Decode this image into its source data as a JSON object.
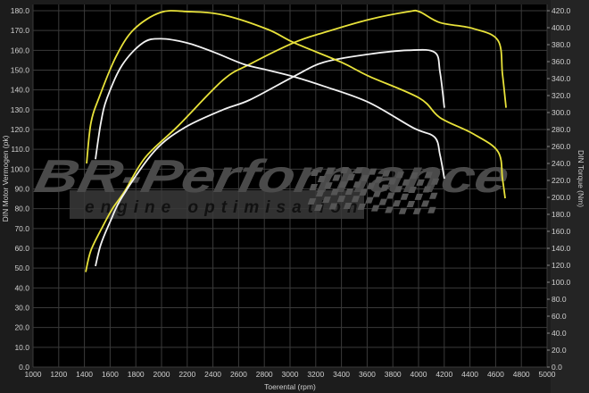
{
  "chart_data": {
    "type": "line",
    "title": "",
    "xlabel": "Toerental (rpm)",
    "ylabel_left": "DIN Motor Vermogen (pk)",
    "ylabel_right": "DIN Torque (Nm)",
    "xlim": [
      1000,
      5000
    ],
    "ylim_left": [
      0,
      180
    ],
    "ylim_right": [
      0,
      420
    ],
    "x_ticks": [
      1000,
      1200,
      1400,
      1600,
      1800,
      2000,
      2200,
      2400,
      2600,
      2800,
      3000,
      3200,
      3400,
      3600,
      3800,
      4000,
      4200,
      4400,
      4600,
      4800,
      5000
    ],
    "y_left_ticks": [
      "0.0",
      "10.0",
      "20.0",
      "30.0",
      "40.0",
      "50.0",
      "60.0",
      "70.0",
      "80.0",
      "90.0",
      "100.0",
      "110.0",
      "120.0",
      "130.0",
      "140.0",
      "150.0",
      "160.0",
      "170.0",
      "180.0"
    ],
    "y_right_ticks": [
      "0.0",
      "20.0",
      "40.0",
      "60.0",
      "80.0",
      "100.0",
      "120.0",
      "140.0",
      "160.0",
      "180.0",
      "200.0",
      "220.0",
      "240.0",
      "260.0",
      "280.0",
      "300.0",
      "320.0",
      "340.0",
      "360.0",
      "380.0",
      "400.0",
      "420.0"
    ],
    "grid": true,
    "colors": {
      "tuned": "#e8e23a",
      "stock": "#f2f2f2",
      "background": "#000000",
      "grid": "#3a3a3a"
    },
    "series": [
      {
        "axis": "left",
        "color": "#e8e23a",
        "points": [
          [
            1410,
            48
          ],
          [
            1451,
            59
          ],
          [
            1542,
            71
          ],
          [
            1618,
            80
          ],
          [
            1715,
            89
          ],
          [
            1875,
            106
          ],
          [
            2132,
            122
          ],
          [
            2479,
            145
          ],
          [
            2688,
            153
          ],
          [
            3035,
            164
          ],
          [
            3264,
            169
          ],
          [
            3611,
            175.5
          ],
          [
            3917,
            179.5
          ],
          [
            4007,
            179.5
          ],
          [
            4167,
            174
          ],
          [
            4424,
            171
          ],
          [
            4618,
            165
          ],
          [
            4653,
            148
          ],
          [
            4681,
            131
          ]
        ]
      },
      {
        "axis": "left",
        "color": "#f2f2f2",
        "points": [
          [
            1486,
            51
          ],
          [
            1528,
            62
          ],
          [
            1604,
            74
          ],
          [
            1694,
            86
          ],
          [
            1944,
            109
          ],
          [
            2181,
            121
          ],
          [
            2479,
            130
          ],
          [
            2688,
            135
          ],
          [
            3035,
            147
          ],
          [
            3264,
            154
          ],
          [
            3611,
            158
          ],
          [
            3917,
            160
          ],
          [
            4125,
            159
          ],
          [
            4167,
            149
          ],
          [
            4201,
            131
          ]
        ]
      },
      {
        "axis": "right",
        "color": "#e8e23a",
        "points": [
          [
            1417,
            240
          ],
          [
            1451,
            288
          ],
          [
            1520,
            320
          ],
          [
            1646,
            366
          ],
          [
            1785,
            398
          ],
          [
            1993,
            418
          ],
          [
            2200,
            419
          ],
          [
            2479,
            415
          ],
          [
            2826,
            398
          ],
          [
            3035,
            382
          ],
          [
            3403,
            359
          ],
          [
            3611,
            343
          ],
          [
            4007,
            317
          ],
          [
            4167,
            294
          ],
          [
            4424,
            275
          ],
          [
            4618,
            254
          ],
          [
            4653,
            222
          ],
          [
            4674,
            199
          ]
        ]
      },
      {
        "axis": "right",
        "color": "#f2f2f2",
        "points": [
          [
            1486,
            245
          ],
          [
            1528,
            288
          ],
          [
            1576,
            317
          ],
          [
            1694,
            356
          ],
          [
            1854,
            382
          ],
          [
            1993,
            387
          ],
          [
            2201,
            382
          ],
          [
            2410,
            371
          ],
          [
            2639,
            357
          ],
          [
            2826,
            350
          ],
          [
            3035,
            342
          ],
          [
            3264,
            331
          ],
          [
            3611,
            312
          ],
          [
            3958,
            282
          ],
          [
            4125,
            271
          ],
          [
            4167,
            250
          ],
          [
            4201,
            222
          ]
        ]
      }
    ]
  },
  "watermark": {
    "brand": "BR-Performance",
    "tagline": "engine optimisation"
  }
}
